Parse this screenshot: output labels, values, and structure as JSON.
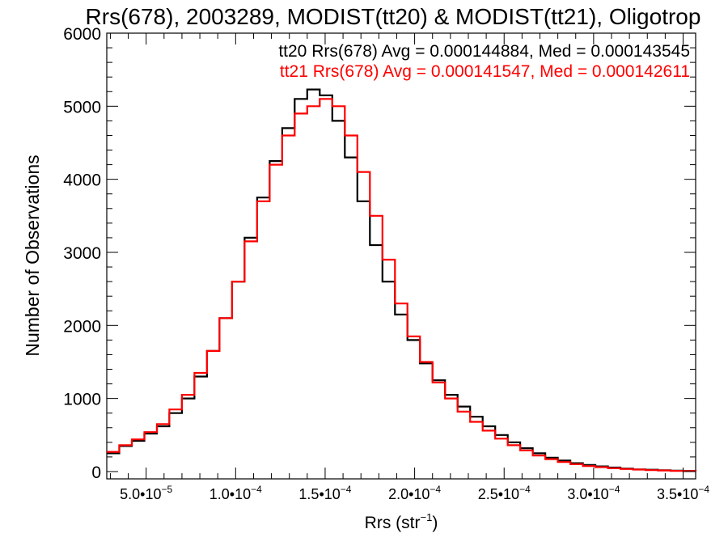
{
  "chart_data": {
    "type": "line",
    "step": true,
    "title": "Rrs(678), 2003289, MODIST(tt20) & MODIST(tt21), Oligotrop",
    "xlabel_main": "Rrs (str",
    "xlabel_sup": "−1",
    "xlabel_close": ")",
    "ylabel": "Number of Observations",
    "xlim": [
      2.8e-05,
      0.000357
    ],
    "ylim": [
      -100,
      6000
    ],
    "xticks": [
      {
        "value": 5e-05,
        "mantissa": "5.0•10",
        "exponent": "−5"
      },
      {
        "value": 0.0001,
        "mantissa": "1.0•10",
        "exponent": "−4"
      },
      {
        "value": 0.00015,
        "mantissa": "1.5•10",
        "exponent": "−4"
      },
      {
        "value": 0.0002,
        "mantissa": "2.0•10",
        "exponent": "−4"
      },
      {
        "value": 0.00025,
        "mantissa": "2.5•10",
        "exponent": "−4"
      },
      {
        "value": 0.0003,
        "mantissa": "3.0•10",
        "exponent": "−4"
      },
      {
        "value": 0.00035,
        "mantissa": "3.5•10",
        "exponent": "−4"
      }
    ],
    "yticks": [
      0,
      1000,
      2000,
      3000,
      4000,
      5000,
      6000
    ],
    "ytick_labels": [
      "0",
      "1000",
      "2000",
      "3000",
      "4000",
      "5000",
      "6000"
    ],
    "series": [
      {
        "name": "tt20",
        "color": "#000000",
        "annotation": "tt20 Rrs(678) Avg = 0.000144884, Med = 0.000143545",
        "x": [
          2.8e-05,
          3.5e-05,
          4.2e-05,
          4.9e-05,
          5.6e-05,
          6.3e-05,
          7e-05,
          7.7e-05,
          8.4e-05,
          9.1e-05,
          9.8e-05,
          0.000105,
          0.000112,
          0.000119,
          0.000126,
          0.000133,
          0.00014,
          0.000147,
          0.000154,
          0.000161,
          0.000168,
          0.000175,
          0.000182,
          0.000189,
          0.000196,
          0.000203,
          0.00021,
          0.000217,
          0.000224,
          0.000231,
          0.000238,
          0.000245,
          0.000252,
          0.000259,
          0.000266,
          0.000273,
          0.00028,
          0.000287,
          0.000294,
          0.000301,
          0.000308,
          0.000315,
          0.000322,
          0.000329,
          0.000336,
          0.000343,
          0.00035,
          0.000357
        ],
        "y": [
          250,
          350,
          420,
          520,
          620,
          800,
          1000,
          1300,
          1650,
          2100,
          2600,
          3200,
          3750,
          4250,
          4700,
          5100,
          5230,
          5150,
          4800,
          4300,
          3700,
          3100,
          2600,
          2150,
          1800,
          1480,
          1250,
          1050,
          890,
          750,
          620,
          500,
          400,
          320,
          250,
          190,
          150,
          115,
          90,
          70,
          55,
          40,
          30,
          25,
          18,
          12,
          8,
          5
        ]
      },
      {
        "name": "tt21",
        "color": "#ff0000",
        "annotation": "tt21 Rrs(678) Avg = 0.000141547, Med = 0.000142611",
        "x": [
          2.8e-05,
          3.5e-05,
          4.2e-05,
          4.9e-05,
          5.6e-05,
          6.3e-05,
          7e-05,
          7.7e-05,
          8.4e-05,
          9.1e-05,
          9.8e-05,
          0.000105,
          0.000112,
          0.000119,
          0.000126,
          0.000133,
          0.00014,
          0.000147,
          0.000154,
          0.000161,
          0.000168,
          0.000175,
          0.000182,
          0.000189,
          0.000196,
          0.000203,
          0.00021,
          0.000217,
          0.000224,
          0.000231,
          0.000238,
          0.000245,
          0.000252,
          0.000259,
          0.000266,
          0.000273,
          0.00028,
          0.000287,
          0.000294,
          0.000301,
          0.000308,
          0.000315,
          0.000322,
          0.000329,
          0.000336,
          0.000343,
          0.00035,
          0.000357
        ],
        "y": [
          270,
          360,
          440,
          540,
          650,
          850,
          1050,
          1350,
          1650,
          2100,
          2600,
          3150,
          3700,
          4200,
          4600,
          4900,
          5000,
          5100,
          5000,
          4600,
          4100,
          3500,
          2900,
          2300,
          1850,
          1500,
          1220,
          1000,
          820,
          680,
          560,
          450,
          360,
          290,
          220,
          170,
          130,
          100,
          75,
          60,
          45,
          35,
          27,
          20,
          15,
          10,
          7,
          5
        ]
      }
    ]
  }
}
